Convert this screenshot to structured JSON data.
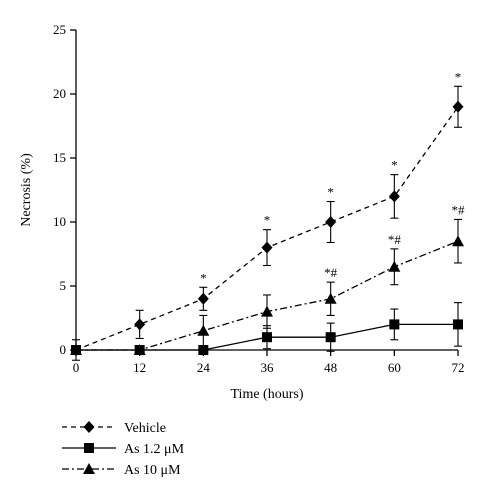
{
  "chart_data": {
    "type": "line",
    "xlabel": "Time (hours)",
    "ylabel": "Necrosis (%)",
    "xlim": [
      0,
      72
    ],
    "ylim": [
      0,
      25
    ],
    "x": [
      0,
      12,
      24,
      36,
      48,
      60,
      72
    ],
    "x_ticks": [
      "0",
      "12",
      "24",
      "36",
      "48",
      "60",
      "72"
    ],
    "y_ticks": [
      "0",
      "5",
      "10",
      "15",
      "20",
      "25"
    ],
    "grid": false,
    "legend_position": "bottom-left",
    "series": [
      {
        "name": "Vehicle",
        "marker": "diamond",
        "line_style": "dashed",
        "values": [
          0,
          2,
          4,
          8,
          10,
          12,
          19
        ],
        "errors": [
          0,
          1.1,
          0.9,
          1.4,
          1.6,
          1.7,
          1.6
        ],
        "annotations": [
          "",
          "",
          "*",
          "*",
          "*",
          "*",
          "*"
        ]
      },
      {
        "name": "As 1.2 μM",
        "marker": "square",
        "line_style": "solid",
        "values": [
          0,
          0,
          0,
          1,
          1,
          2,
          2
        ],
        "errors": [
          0.8,
          0,
          0,
          0.9,
          1.1,
          1.2,
          1.7
        ],
        "annotations": [
          "",
          "",
          "",
          "",
          "",
          "",
          ""
        ]
      },
      {
        "name": "As 10 μM",
        "marker": "triangle",
        "line_style": "dashdot",
        "values": [
          0,
          0,
          1.5,
          3,
          4,
          6.5,
          8.5
        ],
        "errors": [
          0,
          0,
          1.2,
          1.3,
          1.3,
          1.4,
          1.7
        ],
        "annotations": [
          "",
          "",
          "",
          "",
          "*#",
          "*#",
          "*#"
        ]
      }
    ]
  }
}
